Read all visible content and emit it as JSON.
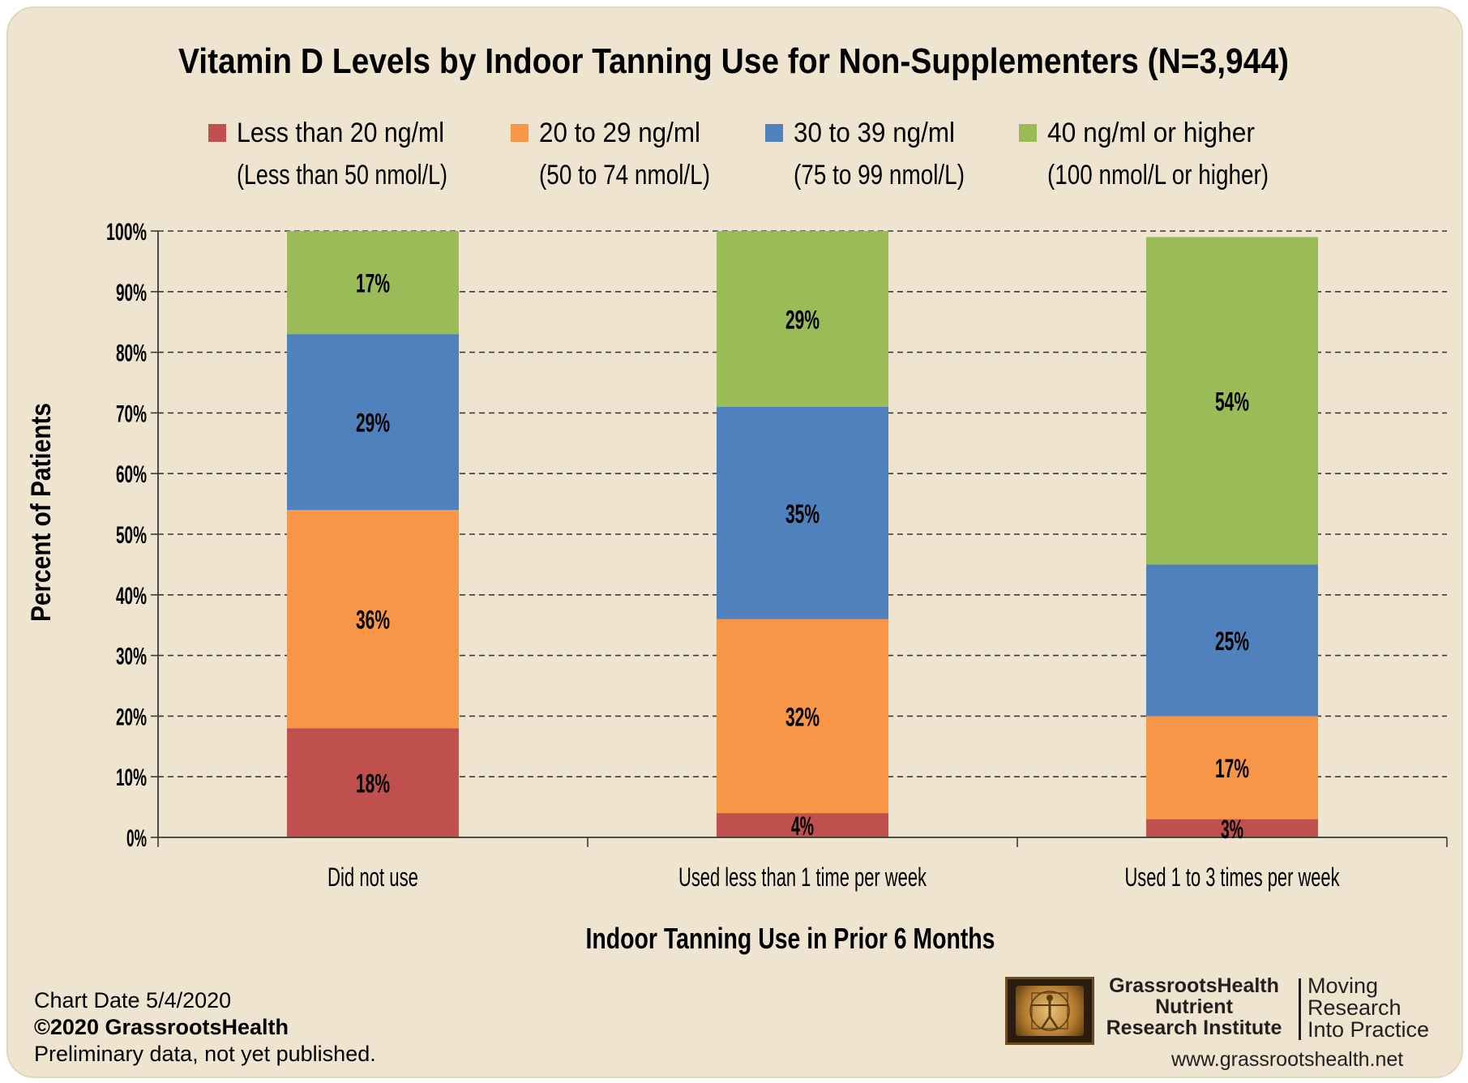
{
  "chart_data": {
    "type": "bar",
    "stacked": true,
    "title": "Vitamin D Levels by Indoor Tanning Use for Non-Supplementers (N=3,944)",
    "xlabel": "Indoor Tanning Use in Prior 6 Months",
    "ylabel": "Percent of Patients",
    "ylim": [
      0,
      100
    ],
    "yticks": [
      "0%",
      "10%",
      "20%",
      "30%",
      "40%",
      "50%",
      "60%",
      "70%",
      "80%",
      "90%",
      "100%"
    ],
    "grid": true,
    "legend_position": "top",
    "categories": [
      "Did not use",
      "Used less than 1 time per week",
      "Used 1 to 3 times per week"
    ],
    "series": [
      {
        "name": "Less than 20 ng/ml",
        "name_line2": "(Less than 50 nmol/L)",
        "color": "#c0504d",
        "values": [
          18,
          4,
          3
        ]
      },
      {
        "name": "20 to 29 ng/ml",
        "name_line2": "(50 to 74 nmol/L)",
        "color": "#f79646",
        "values": [
          36,
          32,
          17
        ]
      },
      {
        "name": "30 to 39 ng/ml",
        "name_line2": "(75 to 99 nmol/L)",
        "color": "#4f81bd",
        "values": [
          29,
          35,
          25
        ]
      },
      {
        "name": "40 ng/ml or higher",
        "name_line2": "(100 nmol/L or higher)",
        "color": "#9bbb59",
        "values": [
          17,
          29,
          54
        ]
      }
    ]
  },
  "footer": {
    "chart_date": "Chart Date 5/4/2020",
    "copyright": "©2020 GrassrootsHealth",
    "note": "Preliminary data, not yet published."
  },
  "brand": {
    "org_line1": "GrassrootsHealth",
    "org_line2": "Nutrient",
    "org_line3": "Research Institute",
    "tagline_line1": "Moving",
    "tagline_line2": "Research",
    "tagline_line3": "Into Practice",
    "website": "www.grassrootshealth.net"
  }
}
